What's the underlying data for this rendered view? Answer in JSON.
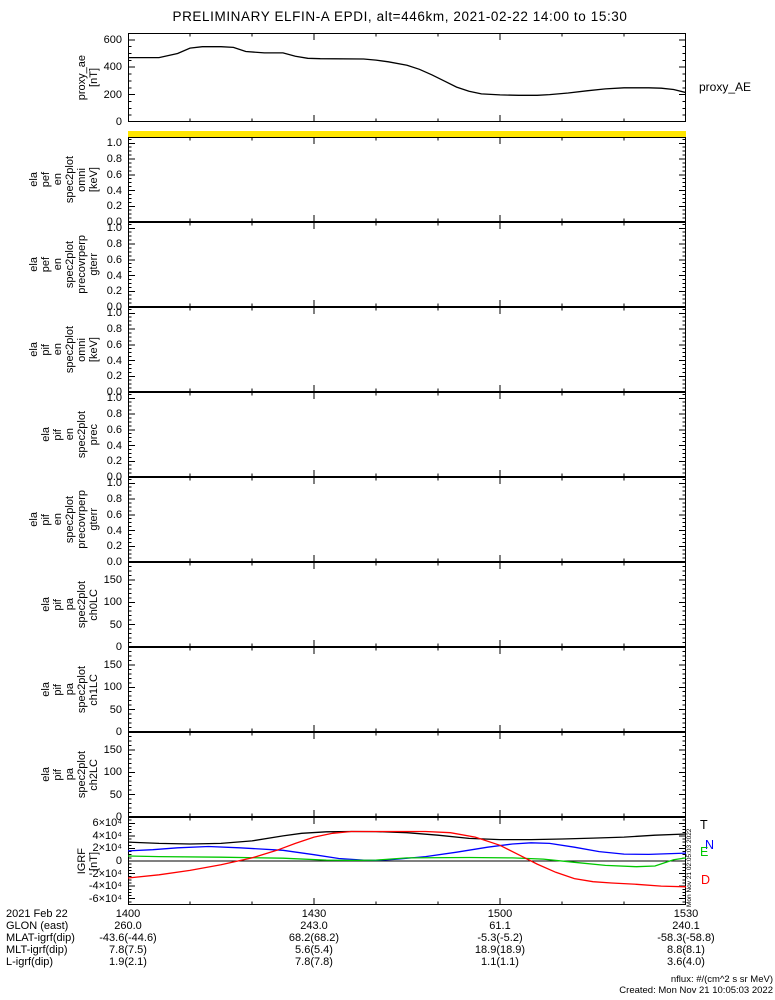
{
  "title": "PRELIMINARY ELFIN-A EPDI, alt=446km, 2021-02-22 14:00 to 15:30",
  "proxy_right_label": "proxy_AE",
  "vertical_timestamp": "Mon Nov 21 02:05:03 2022",
  "footer": {
    "units_note": "nflux: #/(cm^2 s sr MeV)",
    "created": "Created: Mon Nov 21 10:05:03 2022"
  },
  "colors": {
    "yellow_bar": "#ffe600",
    "axis": "#000000",
    "igrf_t": "#000000",
    "igrf_n": "#0000ff",
    "igrf_e": "#00c800",
    "igrf_d": "#ff0000"
  },
  "igrf_legend": [
    {
      "label": "T",
      "color": "#000000"
    },
    {
      "label": "N",
      "color": "#0000ff"
    },
    {
      "label": "E",
      "color": "#00c800"
    },
    {
      "label": "D",
      "color": "#ff0000"
    }
  ],
  "panels": [
    {
      "id": "proxy-ae",
      "left_labels": [
        "proxy_ae",
        "[nT]"
      ],
      "ytick_labels": [
        "0",
        "200",
        "400",
        "600"
      ],
      "ytick_values": [
        0,
        200,
        400,
        600
      ],
      "chart": 0
    },
    {
      "id": "spec-ela-pef-en-omni",
      "left_labels": [
        "ela",
        "pef",
        "en",
        "spec2plot",
        "omni",
        "[keV]"
      ],
      "ytick_labels": [
        "0.0",
        "0.2",
        "0.4",
        "0.6",
        "0.8",
        "1.0"
      ],
      "ytick_values": [
        0,
        0.2,
        0.4,
        0.6,
        0.8,
        1.0
      ]
    },
    {
      "id": "spec-ela-pef-en-precovrperp-gterr",
      "left_labels": [
        "ela",
        "pef",
        "en",
        "spec2plot",
        "precovrperp",
        "gterr"
      ],
      "ytick_labels": [
        "0.0",
        "0.2",
        "0.4",
        "0.6",
        "0.8",
        "1.0"
      ],
      "ytick_values": [
        0,
        0.2,
        0.4,
        0.6,
        0.8,
        1.0
      ]
    },
    {
      "id": "spec-ela-pif-en-omni",
      "left_labels": [
        "ela",
        "pif",
        "en",
        "spec2plot",
        "omni",
        "[keV]"
      ],
      "ytick_labels": [
        "0.0",
        "0.2",
        "0.4",
        "0.6",
        "0.8",
        "1.0"
      ],
      "ytick_values": [
        0,
        0.2,
        0.4,
        0.6,
        0.8,
        1.0
      ]
    },
    {
      "id": "spec-ela-pif-en-prec",
      "left_labels": [
        "ela",
        "pif",
        "en",
        "spec2plot",
        "prec"
      ],
      "ytick_labels": [
        "0.0",
        "0.2",
        "0.4",
        "0.6",
        "0.8",
        "1.0"
      ],
      "ytick_values": [
        0,
        0.2,
        0.4,
        0.6,
        0.8,
        1.0
      ]
    },
    {
      "id": "spec-ela-pif-en-precovrperp-gterr",
      "left_labels": [
        "ela",
        "pif",
        "en",
        "spec2plot",
        "precovrperp",
        "gterr"
      ],
      "ytick_labels": [
        "0.0",
        "0.2",
        "0.4",
        "0.6",
        "0.8",
        "1.0"
      ],
      "ytick_values": [
        0,
        0.2,
        0.4,
        0.6,
        0.8,
        1.0
      ]
    },
    {
      "id": "spec-ela-pif-pa-ch0lc",
      "left_labels": [
        "ela",
        "pif",
        "pa",
        "spec2plot",
        "ch0LC"
      ],
      "ytick_labels": [
        "0",
        "50",
        "100",
        "150"
      ],
      "ytick_values": [
        0,
        50,
        100,
        150
      ]
    },
    {
      "id": "spec-ela-pif-pa-ch1lc",
      "left_labels": [
        "ela",
        "pif",
        "pa",
        "spec2plot",
        "ch1LC"
      ],
      "ytick_labels": [
        "0",
        "50",
        "100",
        "150"
      ],
      "ytick_values": [
        0,
        50,
        100,
        150
      ]
    },
    {
      "id": "spec-ela-pif-pa-ch2lc",
      "left_labels": [
        "ela",
        "pif",
        "pa",
        "spec2plot",
        "ch2LC"
      ],
      "ytick_labels": [
        "0",
        "50",
        "100",
        "150"
      ],
      "ytick_values": [
        0,
        50,
        100,
        150
      ]
    },
    {
      "id": "igrf",
      "left_labels": [
        "IGRF",
        "[nT]"
      ],
      "ytick_labels": [
        "-6×10⁴",
        "-4×10⁴",
        "-2×10⁴",
        "0",
        "2×10⁴",
        "4×10⁴",
        "6×10⁴"
      ],
      "ytick_values": [
        -60000,
        -40000,
        -20000,
        0,
        20000,
        40000,
        60000
      ],
      "chart": 1
    }
  ],
  "annotations": {
    "rows": [
      {
        "label": "2021 Feb 22",
        "values": [
          "1400",
          "1430",
          "1500",
          "1530"
        ]
      },
      {
        "label": "GLON (east)",
        "values": [
          "260.0",
          "243.0",
          "61.1",
          "240.1"
        ]
      },
      {
        "label": "MLAT-igrf(dip)",
        "values": [
          "-43.6(-44.6)",
          "68.2(68.2)",
          "-5.3(-5.2)",
          "-58.3(-58.8)"
        ]
      },
      {
        "label": "MLT-igrf(dip)",
        "values": [
          "7.8(7.5)",
          "5.6(5.4)",
          "18.9(18.9)",
          "8.8(8.1)"
        ]
      },
      {
        "label": "L-igrf(dip)",
        "values": [
          "1.9(2.1)",
          "7.8(7.8)",
          "1.1(1.1)",
          "3.6(4.0)"
        ]
      }
    ]
  },
  "chart_data": [
    {
      "type": "line",
      "name": "proxy_AE",
      "ylabel": "proxy_ae [nT]",
      "right_label": "proxy_AE",
      "ylim": [
        0,
        600
      ],
      "yticks": [
        0,
        200,
        400,
        600
      ],
      "xlim_minutes_after_1400": [
        0,
        90
      ],
      "xticks": [
        "1400",
        "1430",
        "1500",
        "1530"
      ],
      "color": "#000000",
      "x": [
        0,
        5,
        8,
        10,
        12,
        15,
        17,
        19,
        22,
        25,
        27,
        29,
        31,
        38,
        40,
        42,
        45,
        47,
        49,
        51,
        53,
        55,
        57,
        60,
        63,
        66,
        68,
        71,
        74,
        77,
        80,
        84,
        86,
        88,
        90
      ],
      "values": [
        470,
        470,
        500,
        540,
        550,
        550,
        545,
        515,
        505,
        505,
        480,
        465,
        462,
        460,
        452,
        440,
        415,
        385,
        345,
        300,
        255,
        225,
        205,
        198,
        195,
        195,
        200,
        212,
        228,
        242,
        250,
        250,
        247,
        237,
        215
      ]
    },
    {
      "type": "line",
      "name": "IGRF",
      "ylabel": "IGRF [nT]",
      "ylim": [
        -60000,
        60000
      ],
      "yticks": [
        -60000,
        -40000,
        -20000,
        0,
        20000,
        40000,
        60000
      ],
      "xlim_minutes_after_1400": [
        0,
        90
      ],
      "xticks": [
        "1400",
        "1430",
        "1500",
        "1530"
      ],
      "legend_position": "right",
      "zero_line": true,
      "series": [
        {
          "name": "T",
          "color": "#000000",
          "x": [
            0,
            5,
            10,
            15,
            20,
            25,
            28,
            32,
            36,
            40,
            45,
            50,
            55,
            60,
            65,
            70,
            75,
            80,
            85,
            90
          ],
          "values": [
            30000,
            28000,
            27000,
            28000,
            32000,
            40000,
            44000,
            46500,
            47000,
            46800,
            45000,
            41000,
            36000,
            34000,
            34000,
            35000,
            36500,
            38000,
            41000,
            43000
          ]
        },
        {
          "name": "N",
          "color": "#0000ff",
          "x": [
            0,
            4,
            8,
            13,
            18,
            25,
            30,
            34,
            38,
            40,
            43,
            48,
            53,
            58,
            62,
            65,
            68,
            72,
            76,
            80,
            84,
            90
          ],
          "values": [
            16000,
            18000,
            21000,
            23000,
            21000,
            17000,
            10000,
            4000,
            1500,
            1000,
            2500,
            7000,
            14000,
            22000,
            27000,
            29000,
            28000,
            22000,
            15000,
            11000,
            10500,
            12500
          ]
        },
        {
          "name": "E",
          "color": "#00c800",
          "x": [
            0,
            5,
            15,
            25,
            32,
            36,
            40,
            45,
            55,
            62,
            67,
            72,
            77,
            82,
            85,
            88,
            90
          ],
          "values": [
            8000,
            7000,
            6000,
            4500,
            1500,
            1000,
            1500,
            5000,
            5500,
            5000,
            3000,
            -2000,
            -7000,
            -9000,
            -8000,
            2000,
            5000
          ]
        },
        {
          "name": "D",
          "color": "#ff0000",
          "x": [
            0,
            5,
            10,
            15,
            20,
            24,
            27,
            30,
            33,
            36,
            48,
            52,
            56,
            60,
            63,
            66,
            69,
            72,
            75,
            78,
            82,
            86,
            90
          ],
          "values": [
            -27000,
            -22000,
            -15000,
            -6000,
            5000,
            17000,
            28000,
            38000,
            44000,
            47000,
            47000,
            45000,
            38000,
            25000,
            10000,
            -5000,
            -18000,
            -28000,
            -33000,
            -35000,
            -37000,
            -40000,
            -41000
          ]
        }
      ]
    }
  ]
}
